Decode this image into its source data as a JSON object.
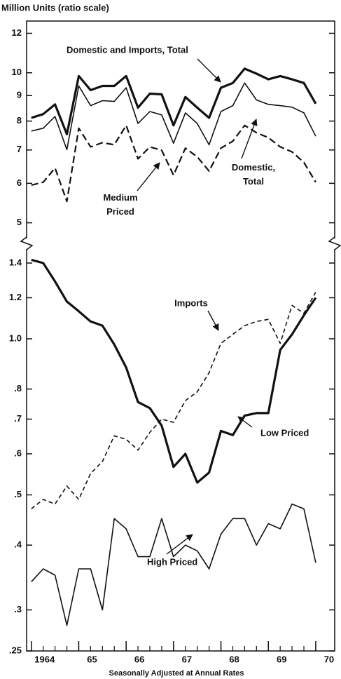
{
  "chart_data": [
    {
      "type": "line",
      "log_scale": true,
      "y_label": "Million Units (ratio scale)",
      "x": [
        1964,
        1964.25,
        1964.5,
        1964.75,
        1965,
        1965.25,
        1965.5,
        1965.75,
        1966,
        1966.25,
        1966.5,
        1966.75,
        1967,
        1967.25,
        1967.5,
        1967.75,
        1968,
        1968.25,
        1968.5,
        1968.75,
        1969,
        1969.25,
        1969.5,
        1969.75,
        1970
      ],
      "xlim": [
        1963.9,
        1970.4
      ],
      "ylim": [
        4.65,
        12.7
      ],
      "yticks": [
        5,
        6,
        7,
        8,
        9,
        10,
        12
      ],
      "series": [
        {
          "name": "Domestic and Imports, Total",
          "color": "#111111",
          "values": [
            8.12,
            8.26,
            8.64,
            7.53,
            9.85,
            9.23,
            9.41,
            9.41,
            9.85,
            8.51,
            9.08,
            9.05,
            7.84,
            8.94,
            8.51,
            8.12,
            9.33,
            9.54,
            10.19,
            9.96,
            9.7,
            9.85,
            9.7,
            9.54,
            8.67
          ]
        },
        {
          "name": "Domestic, Total",
          "color": "#111111",
          "values": [
            7.64,
            7.74,
            8.17,
            7.01,
            9.41,
            8.59,
            8.79,
            8.76,
            9.33,
            7.91,
            8.36,
            8.23,
            7.22,
            8.31,
            7.91,
            7.17,
            8.36,
            8.59,
            9.54,
            8.82,
            8.64,
            8.59,
            8.53,
            8.31,
            7.46
          ]
        },
        {
          "name": "Medium Priced",
          "color": "#111111",
          "values": [
            5.95,
            6.03,
            6.44,
            5.52,
            7.74,
            7.1,
            7.24,
            7.17,
            7.84,
            6.72,
            7.1,
            6.99,
            6.23,
            7.06,
            6.78,
            6.35,
            7.06,
            7.29,
            7.84,
            7.58,
            7.41,
            7.1,
            6.94,
            6.61,
            6.03
          ]
        }
      ]
    },
    {
      "type": "line",
      "log_scale": true,
      "x_label": "Seasonally Adjusted at Annual Rates",
      "x": [
        1964,
        1964.25,
        1964.5,
        1964.75,
        1965,
        1965.25,
        1965.5,
        1965.75,
        1966,
        1966.25,
        1966.5,
        1966.75,
        1967,
        1967.25,
        1967.5,
        1967.75,
        1968,
        1968.25,
        1968.5,
        1968.75,
        1969,
        1969.25,
        1969.5,
        1969.75,
        1970
      ],
      "xlim": [
        1963.9,
        1970.4
      ],
      "xticks": [
        {
          "value": 1964,
          "label": "1964"
        },
        {
          "value": 1965,
          "label": "65"
        },
        {
          "value": 1966,
          "label": "66"
        },
        {
          "value": 1967,
          "label": "67"
        },
        {
          "value": 1968,
          "label": "68"
        },
        {
          "value": 1969,
          "label": "69"
        },
        {
          "value": 1970,
          "label": "70"
        }
      ],
      "ylim": [
        0.25,
        1.49
      ],
      "yticks": [
        {
          "value": 0.25,
          "label": ".25"
        },
        {
          "value": 0.3,
          "label": ".3"
        },
        {
          "value": 0.4,
          "label": ".4"
        },
        {
          "value": 0.5,
          "label": ".5"
        },
        {
          "value": 0.6,
          "label": ".6"
        },
        {
          "value": 0.7,
          "label": ".7"
        },
        {
          "value": 0.8,
          "label": ".8"
        },
        {
          "value": 1,
          "label": "1.0"
        },
        1.2,
        1.4
      ],
      "series": [
        {
          "name": "Imports",
          "color": "#111111",
          "values": [
            0.47,
            0.49,
            0.48,
            0.52,
            0.49,
            0.55,
            0.58,
            0.65,
            0.64,
            0.61,
            0.66,
            0.7,
            0.69,
            0.76,
            0.79,
            0.86,
            0.98,
            1.02,
            1.06,
            1.08,
            1.09,
            0.98,
            1.16,
            1.12,
            1.23
          ]
        },
        {
          "name": "Low Priced",
          "color": "#111111",
          "values": [
            1.42,
            1.4,
            1.29,
            1.18,
            1.13,
            1.08,
            1.06,
            0.975,
            0.88,
            0.755,
            0.735,
            0.68,
            0.566,
            0.6,
            0.528,
            0.552,
            0.664,
            0.652,
            0.711,
            0.719,
            0.719,
            0.952,
            1.02,
            1.11,
            1.2
          ]
        },
        {
          "name": "High Priced",
          "color": "#111111",
          "values": [
            0.34,
            0.36,
            0.35,
            0.28,
            0.36,
            0.36,
            0.3,
            0.45,
            0.43,
            0.38,
            0.38,
            0.45,
            0.38,
            0.4,
            0.39,
            0.36,
            0.42,
            0.45,
            0.45,
            0.4,
            0.44,
            0.43,
            0.48,
            0.47,
            0.37
          ]
        }
      ]
    }
  ]
}
